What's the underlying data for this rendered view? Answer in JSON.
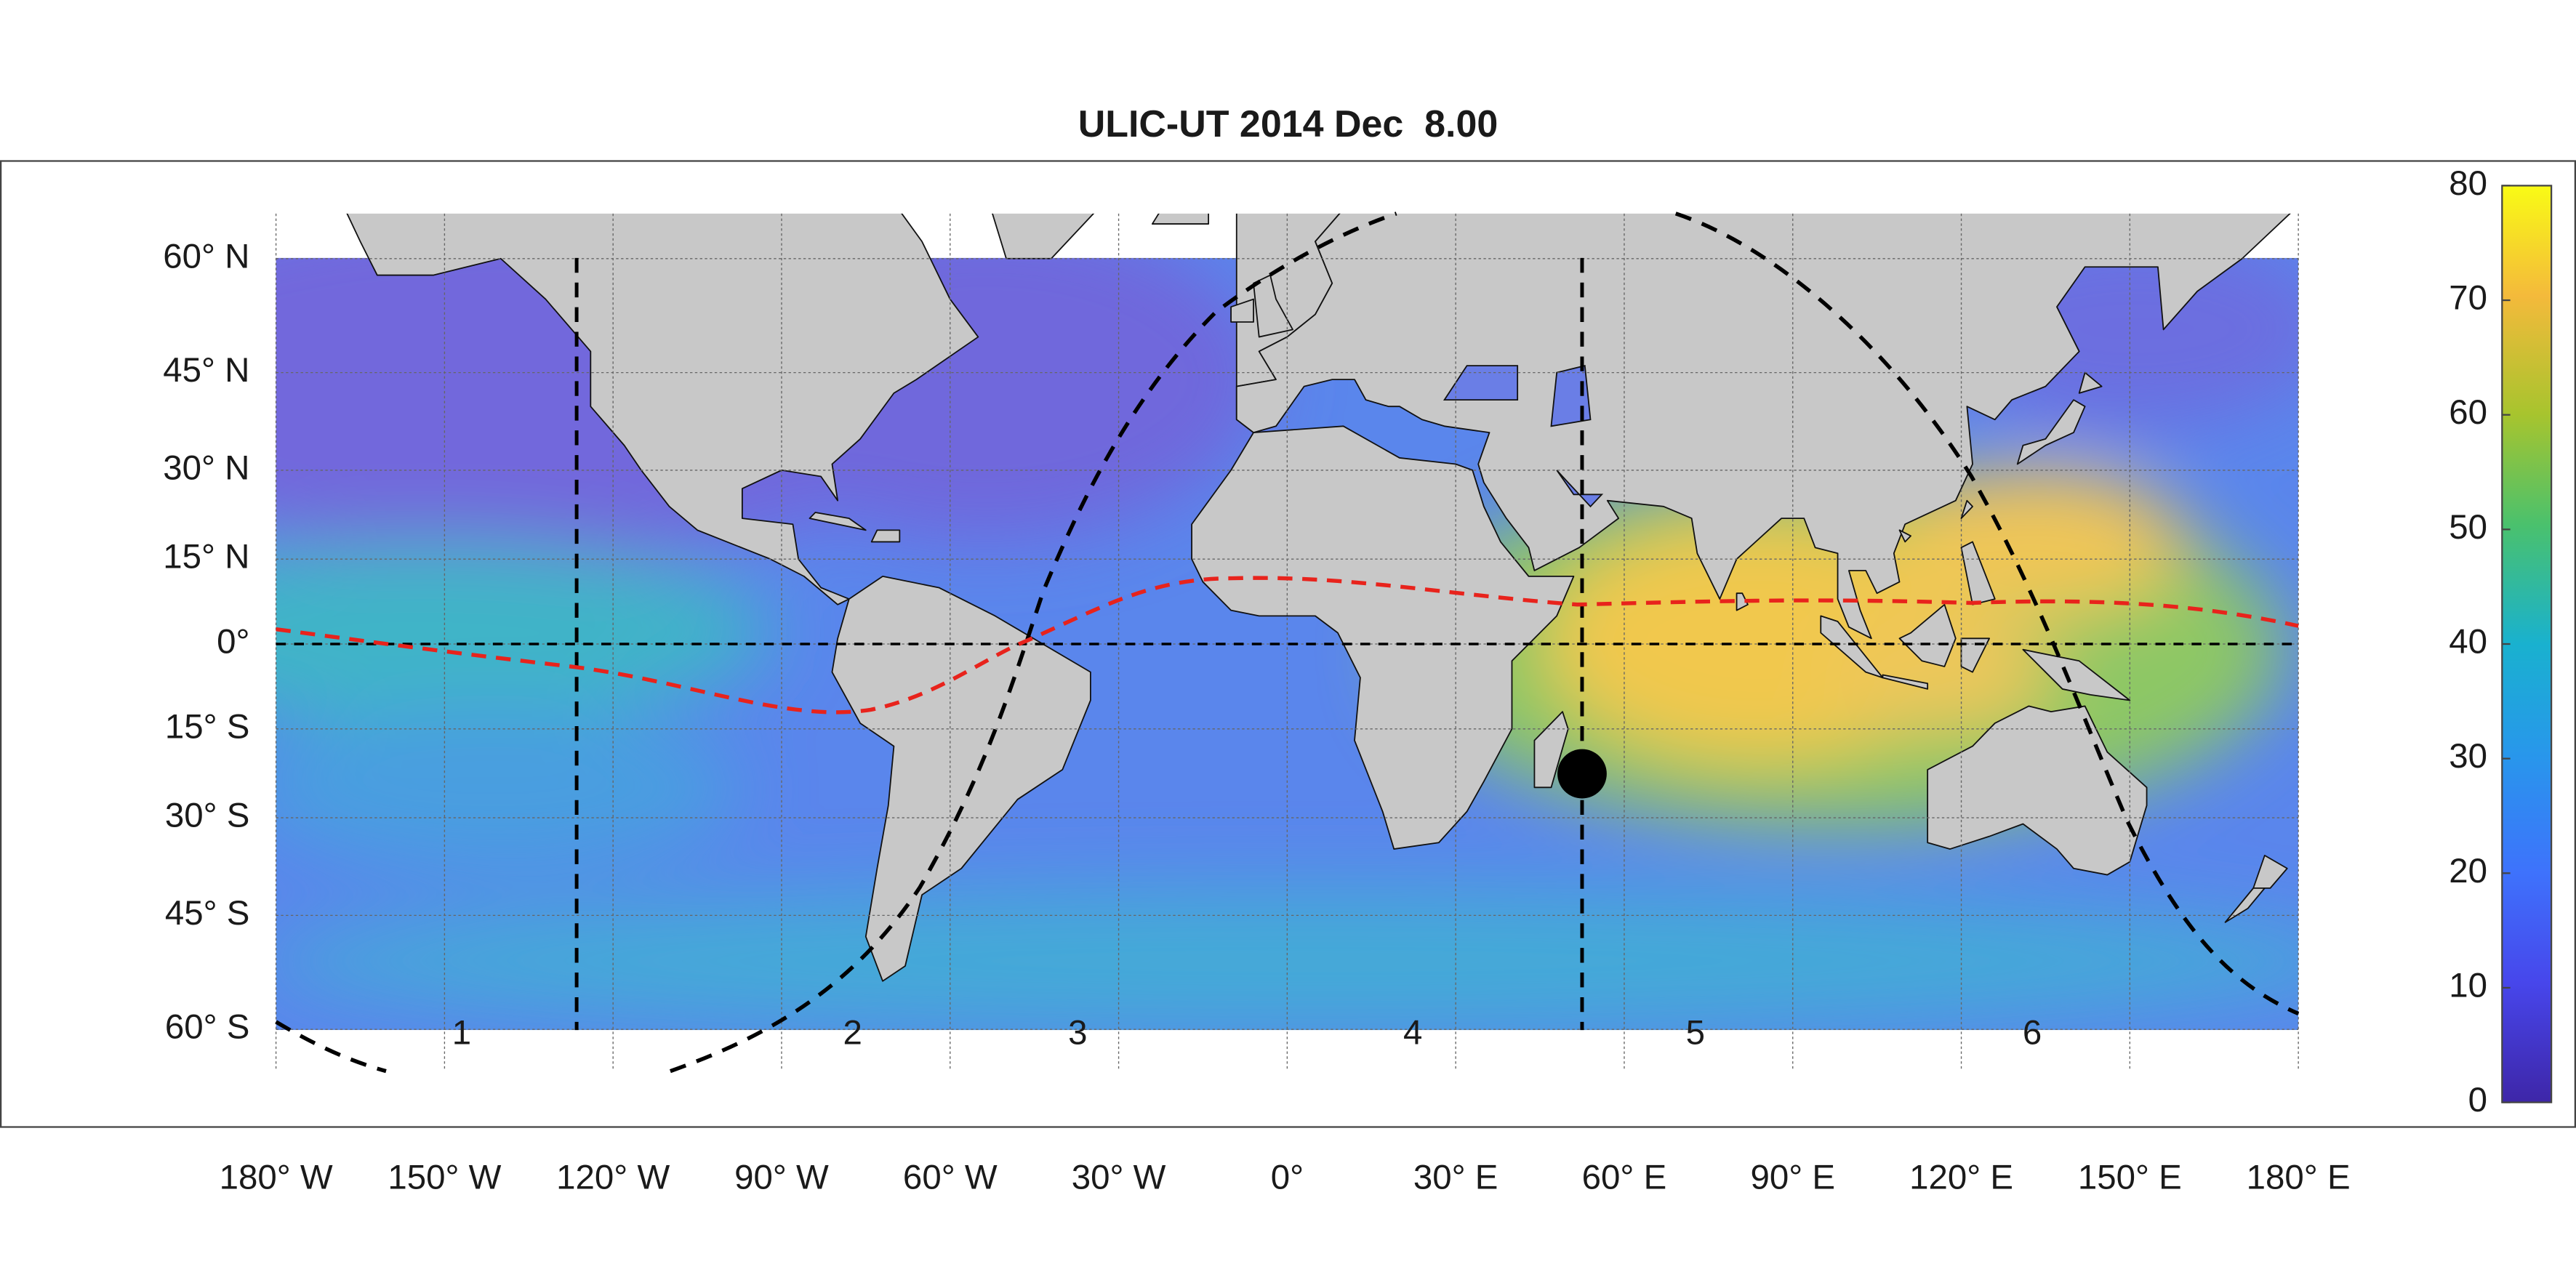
{
  "title": "ULIC-UT 2014 Dec  8.00",
  "map": {
    "lon_ticks": [
      {
        "value": -180,
        "label": "180° W"
      },
      {
        "value": -150,
        "label": "150° W"
      },
      {
        "value": -120,
        "label": "120° W"
      },
      {
        "value": -90,
        "label": "90° W"
      },
      {
        "value": -60,
        "label": "60° W"
      },
      {
        "value": -30,
        "label": "30° W"
      },
      {
        "value": 0,
        "label": "0°"
      },
      {
        "value": 30,
        "label": "30° E"
      },
      {
        "value": 60,
        "label": "60° E"
      },
      {
        "value": 90,
        "label": "90° E"
      },
      {
        "value": 120,
        "label": "120° E"
      },
      {
        "value": 150,
        "label": "150° E"
      },
      {
        "value": 180,
        "label": "180° E"
      }
    ],
    "lat_ticks": [
      {
        "value": 60,
        "label": "60° N"
      },
      {
        "value": 45,
        "label": "45° N"
      },
      {
        "value": 30,
        "label": "30° N"
      },
      {
        "value": 15,
        "label": "15° N"
      },
      {
        "value": 0,
        "label": "0°"
      },
      {
        "value": -15,
        "label": "15° S"
      },
      {
        "value": -30,
        "label": "30° S"
      },
      {
        "value": -45,
        "label": "45° S"
      },
      {
        "value": -60,
        "label": "60° S"
      }
    ],
    "regions": [
      "1",
      "2",
      "3",
      "4",
      "5",
      "6"
    ]
  },
  "colorbar": {
    "lim": [
      0,
      80
    ],
    "ticks": [
      0,
      10,
      20,
      30,
      40,
      50,
      60,
      70,
      80
    ]
  }
}
